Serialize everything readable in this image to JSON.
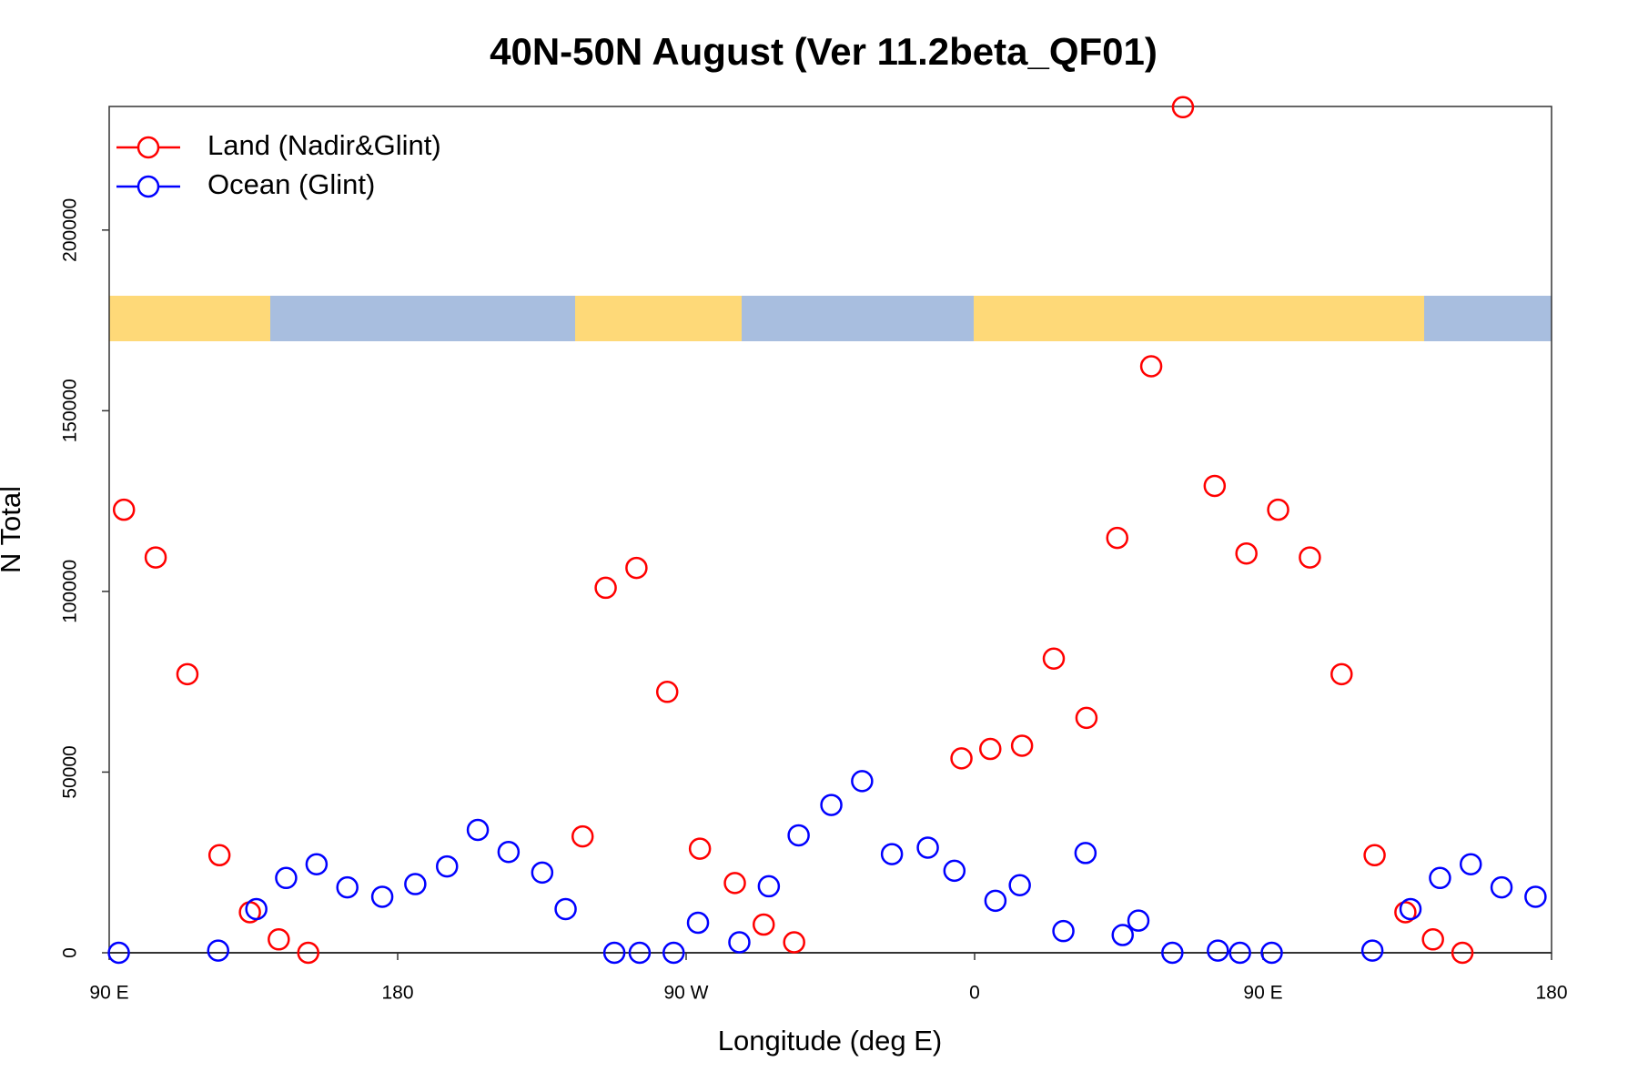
{
  "chart_data": {
    "type": "scatter",
    "title": "40N-50N August (Ver 11.2beta_QF01)",
    "xlabel": "Longitude (deg E)",
    "ylabel": "N Total",
    "xlim": [
      90,
      540
    ],
    "ylim": [
      0,
      234200
    ],
    "xticks": [
      {
        "value": 90,
        "label": "90 E"
      },
      180,
      {
        "value": 270,
        "label": "90 W"
      },
      {
        "value": 360,
        "label": "0"
      },
      {
        "value": 450,
        "label": "90 E"
      },
      {
        "value": 540,
        "label": "180"
      }
    ],
    "yticks": [
      0,
      50000,
      100000,
      150000,
      200000
    ],
    "legend": "topleft",
    "series": [
      {
        "name": "Land (Nadir&Glint)",
        "color": "#ff0000",
        "x": [
          94.6,
          104.5,
          114.4,
          124.4,
          133.9,
          142.9,
          152.1,
          237.7,
          244.9,
          254.5,
          264.1,
          274.3,
          285.2,
          294.2,
          303.7,
          355.9,
          364.9,
          374.8,
          384.7,
          394.9,
          404.5,
          415.1,
          425.0,
          434.9,
          444.8,
          454.7,
          464.6,
          474.5,
          484.8,
          494.4,
          503.0,
          512.2
        ],
        "values": [
          122600,
          109400,
          77100,
          27000,
          11200,
          3700,
          0,
          32200,
          101000,
          106500,
          72200,
          28800,
          19300,
          7800,
          2900,
          53800,
          56400,
          57300,
          81400,
          65000,
          114800,
          162300,
          234000,
          129200,
          110500,
          122600,
          109400,
          77100,
          27000,
          11200,
          3700,
          0
        ]
      },
      {
        "name": "Ocean (Glint)",
        "color": "#0000ff",
        "x": [
          93.0,
          124.0,
          135.9,
          145.2,
          154.7,
          164.3,
          175.2,
          185.5,
          195.4,
          205.0,
          214.6,
          225.1,
          232.4,
          247.6,
          255.5,
          266.1,
          273.7,
          286.6,
          295.8,
          305.1,
          315.3,
          324.9,
          334.2,
          345.4,
          353.7,
          366.5,
          374.1,
          387.7,
          394.6,
          406.2,
          411.1,
          421.7,
          435.9,
          442.8,
          452.7,
          484.1,
          496.0,
          505.2,
          514.8,
          524.4,
          535.0
        ],
        "values": [
          0,
          600,
          12100,
          20700,
          24500,
          18100,
          15500,
          19000,
          23900,
          34000,
          27900,
          22200,
          12100,
          0,
          0,
          0,
          8300,
          2900,
          18400,
          32500,
          40900,
          47500,
          27300,
          29100,
          22700,
          14400,
          18700,
          6000,
          27600,
          4900,
          8900,
          0,
          600,
          0,
          0,
          600,
          12100,
          20700,
          24500,
          18100,
          15500
        ]
      }
    ]
  }
}
